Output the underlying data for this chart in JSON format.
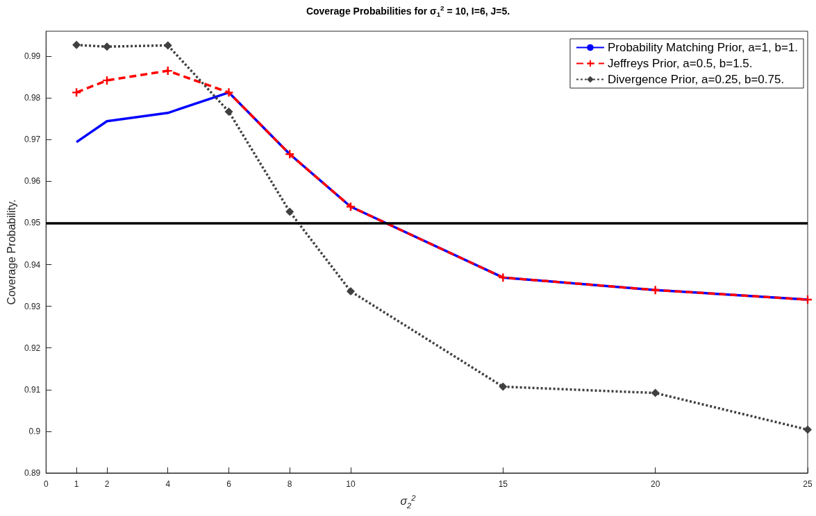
{
  "chart_data": {
    "type": "line",
    "title": "Coverage Probabilities for  σ$_{1}$$^{2}$ = 10, I=6, J=5.",
    "xlabel": "σ$_{2}$$^{2}$",
    "ylabel": "Coverage Probability.",
    "x": [
      1,
      2,
      4,
      6,
      8,
      10,
      15,
      20,
      25
    ],
    "series": [
      {
        "name": "Probability Matching Prior, a=1, b=1.",
        "color": "#0000ff",
        "marker": "none",
        "line_style": "solid",
        "values": [
          0.9694,
          0.9744,
          0.9764,
          0.9813,
          0.9665,
          0.9539,
          0.9369,
          0.9339,
          0.9316
        ]
      },
      {
        "name": "Jeffreys Prior, a=0.5, b=1.5.",
        "color": "#ff0000",
        "marker": "cross",
        "line_style": "dashed",
        "values": [
          0.9813,
          0.9842,
          0.9865,
          0.9813,
          0.9665,
          0.9539,
          0.9369,
          0.9339,
          0.9316
        ]
      },
      {
        "name": "Divergence Prior, a=0.25, b=0.75.",
        "color": "#404040",
        "marker": "diamond",
        "line_style": "dotted",
        "values": [
          0.9927,
          0.9923,
          0.9926,
          0.9767,
          0.9527,
          0.9336,
          0.9107,
          0.9092,
          0.9004
        ]
      }
    ],
    "xlim": [
      0,
      25
    ],
    "xticks": [
      0,
      1,
      2,
      4,
      6,
      8,
      10,
      15,
      20,
      25
    ],
    "ylim": [
      0.89,
      0.996
    ],
    "yticks": [
      0.89,
      0.9,
      0.91,
      0.92,
      0.93,
      0.94,
      0.95,
      0.96,
      0.97,
      0.98,
      0.99
    ],
    "ref_lines": [
      {
        "axis": "y",
        "value": 0.95,
        "color": "#000000",
        "line_style": "solid"
      }
    ],
    "grid": false,
    "legend": "top right"
  }
}
